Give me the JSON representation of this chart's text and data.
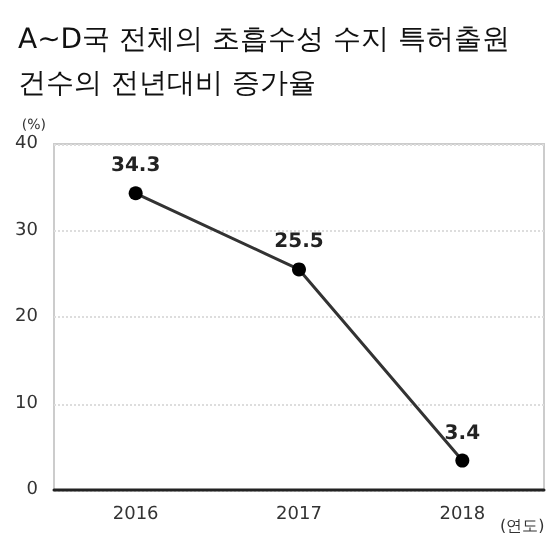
{
  "chart_data": {
    "type": "line",
    "title": "A~D국 전체의 초흡수성 수지 특허출원 건수의 전년대비 증가율",
    "xlabel": "(연도)",
    "ylabel": "(%)",
    "categories": [
      "2016",
      "2017",
      "2018"
    ],
    "series": [
      {
        "color": "#333333",
        "values": [
          34.3,
          25.5,
          3.4
        ]
      }
    ],
    "ylim": [
      0,
      40
    ],
    "yticks": [
      0,
      10,
      20,
      30,
      40
    ],
    "grid": "y",
    "marker": "circle",
    "line_style": "solid",
    "data_labels": true
  }
}
